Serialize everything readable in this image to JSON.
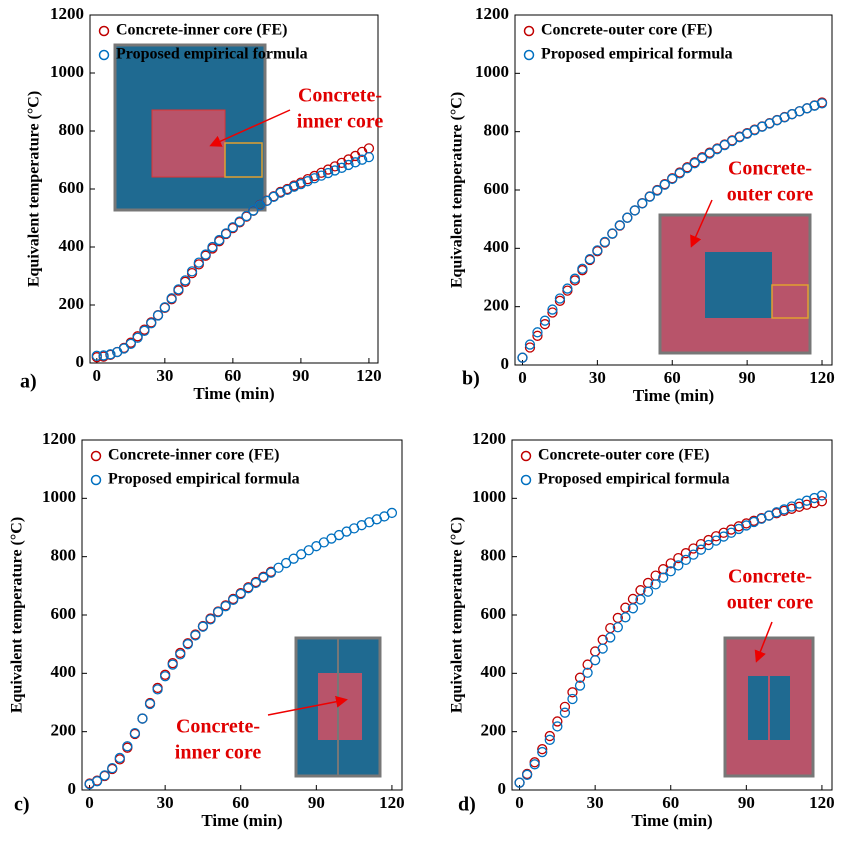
{
  "chart_data": [
    {
      "type": "scatter",
      "panel_label": "a)",
      "xlabel": "Time (min)",
      "ylabel": "Equivalent temperature (°C)",
      "annotation": [
        "Concrete-",
        "inner core"
      ],
      "xlim": [
        -3,
        124
      ],
      "xticks": [
        0,
        30,
        60,
        90,
        120
      ],
      "ylim": [
        0,
        1200
      ],
      "yticks": [
        0,
        200,
        400,
        600,
        800,
        1000,
        1200
      ],
      "x": [
        0,
        3,
        6,
        9,
        12,
        15,
        18,
        21,
        24,
        27,
        30,
        33,
        36,
        39,
        42,
        45,
        48,
        51,
        54,
        57,
        60,
        63,
        66,
        69,
        72,
        75,
        78,
        81,
        84,
        87,
        90,
        93,
        96,
        99,
        102,
        105,
        108,
        111,
        114,
        117,
        120
      ],
      "series": [
        {
          "name": "Concrete-inner core (FE)",
          "color": "#c00000",
          "values": [
            20,
            22,
            28,
            38,
            52,
            70,
            92,
            115,
            140,
            165,
            190,
            220,
            250,
            280,
            310,
            340,
            370,
            395,
            420,
            445,
            465,
            485,
            505,
            525,
            545,
            560,
            575,
            590,
            600,
            612,
            622,
            634,
            645,
            656,
            667,
            678,
            690,
            702,
            714,
            728,
            740
          ]
        },
        {
          "name": "Proposed empirical formula",
          "color": "#0070c0",
          "values": [
            25,
            26,
            30,
            38,
            50,
            66,
            87,
            111,
            137,
            164,
            192,
            223,
            254,
            285,
            316,
            346,
            374,
            400,
            424,
            447,
            468,
            488,
            507,
            526,
            544,
            559,
            573,
            587,
            597,
            608,
            617,
            627,
            637,
            646,
            655,
            664,
            673,
            683,
            692,
            701,
            710
          ]
        }
      ]
    },
    {
      "type": "scatter",
      "panel_label": "b)",
      "xlabel": "Time (min)",
      "ylabel": "Equivalent temperature (°C)",
      "annotation": [
        "Concrete-",
        "outer core"
      ],
      "xlim": [
        -3,
        124
      ],
      "xticks": [
        0,
        30,
        60,
        90,
        120
      ],
      "ylim": [
        0,
        1200
      ],
      "yticks": [
        0,
        200,
        400,
        600,
        800,
        1000,
        1200
      ],
      "x": [
        0,
        3,
        6,
        9,
        12,
        15,
        18,
        21,
        24,
        27,
        30,
        33,
        36,
        39,
        42,
        45,
        48,
        51,
        54,
        57,
        60,
        63,
        66,
        69,
        72,
        75,
        78,
        81,
        84,
        87,
        90,
        93,
        96,
        99,
        102,
        105,
        108,
        111,
        114,
        117,
        120
      ],
      "series": [
        {
          "name": "Concrete-outer core (FE)",
          "color": "#c00000",
          "values": [
            25,
            60,
            100,
            140,
            180,
            220,
            255,
            290,
            325,
            360,
            390,
            420,
            450,
            478,
            505,
            530,
            555,
            578,
            600,
            620,
            640,
            660,
            678,
            695,
            712,
            728,
            742,
            756,
            770,
            783,
            795,
            807,
            818,
            829,
            840,
            850,
            860,
            870,
            880,
            890,
            900
          ]
        },
        {
          "name": "Proposed empirical formula",
          "color": "#0070c0",
          "values": [
            25,
            70,
            112,
            152,
            190,
            228,
            262,
            296,
            330,
            363,
            393,
            422,
            451,
            479,
            505,
            530,
            554,
            577,
            598,
            618,
            638,
            657,
            675,
            692,
            709,
            725,
            740,
            754,
            768,
            781,
            793,
            805,
            817,
            828,
            839,
            849,
            860,
            870,
            880,
            889,
            897
          ]
        }
      ]
    },
    {
      "type": "scatter",
      "panel_label": "c)",
      "xlabel": "Time (min)",
      "ylabel": "Equivalent temperature (°C)",
      "annotation": [
        "Concrete-",
        "inner core"
      ],
      "xlim": [
        -3,
        124
      ],
      "xticks": [
        0,
        30,
        60,
        90,
        120
      ],
      "ylim": [
        0,
        1200
      ],
      "yticks": [
        0,
        200,
        400,
        600,
        800,
        1000,
        1200
      ],
      "x": [
        0,
        3,
        6,
        9,
        12,
        15,
        18,
        21,
        24,
        27,
        30,
        33,
        36,
        39,
        42,
        45,
        48,
        51,
        54,
        57,
        60,
        63,
        66,
        69,
        72,
        75,
        78,
        81,
        84,
        87,
        90,
        93,
        96,
        99,
        102,
        105,
        108,
        111,
        114,
        117,
        120
      ],
      "series": [
        {
          "name": "Concrete-inner core (FE)",
          "color": "#c00000",
          "values": [
            22,
            32,
            48,
            72,
            105,
            145,
            192,
            245,
            298,
            350,
            395,
            435,
            470,
            503,
            533,
            562,
            588,
            612,
            633,
            655,
            675,
            695,
            713,
            731,
            748,
            null,
            null,
            null,
            null,
            null,
            null,
            null,
            null,
            null,
            null,
            null,
            null,
            null,
            null,
            null,
            null
          ]
        },
        {
          "name": "Proposed empirical formula",
          "color": "#0070c0",
          "values": [
            20,
            30,
            50,
            75,
            110,
            150,
            195,
            245,
            295,
            345,
            390,
            430,
            465,
            500,
            530,
            560,
            585,
            610,
            630,
            652,
            672,
            692,
            710,
            728,
            745,
            762,
            778,
            793,
            808,
            822,
            836,
            849,
            862,
            874,
            886,
            897,
            908,
            918,
            928,
            938,
            950
          ]
        }
      ]
    },
    {
      "type": "scatter",
      "panel_label": "d)",
      "xlabel": "Time (min)",
      "ylabel": "Equivalent temperature (°C)",
      "annotation": [
        "Concrete-",
        "outer core"
      ],
      "xlim": [
        -3,
        124
      ],
      "xticks": [
        0,
        30,
        60,
        90,
        120
      ],
      "ylim": [
        0,
        1200
      ],
      "yticks": [
        0,
        200,
        400,
        600,
        800,
        1000,
        1200
      ],
      "x": [
        0,
        3,
        6,
        9,
        12,
        15,
        18,
        21,
        24,
        27,
        30,
        33,
        36,
        39,
        42,
        45,
        48,
        51,
        54,
        57,
        60,
        63,
        66,
        69,
        72,
        75,
        78,
        81,
        84,
        87,
        90,
        93,
        96,
        99,
        102,
        105,
        108,
        111,
        114,
        117,
        120
      ],
      "series": [
        {
          "name": "Concrete-outer core (FE)",
          "color": "#c00000",
          "values": [
            25,
            55,
            95,
            140,
            185,
            235,
            285,
            335,
            385,
            430,
            475,
            515,
            555,
            590,
            625,
            655,
            685,
            710,
            735,
            757,
            777,
            795,
            812,
            828,
            843,
            857,
            870,
            882,
            893,
            904,
            914,
            923,
            932,
            941,
            949,
            957,
            964,
            971,
            978,
            984,
            990
          ]
        },
        {
          "name": "Proposed empirical formula",
          "color": "#0070c0",
          "values": [
            25,
            52,
            88,
            130,
            172,
            218,
            265,
            312,
            358,
            402,
            445,
            485,
            523,
            558,
            592,
            623,
            653,
            680,
            705,
            728,
            750,
            770,
            789,
            807,
            824,
            840,
            855,
            869,
            882,
            895,
            907,
            919,
            930,
            941,
            952,
            962,
            972,
            982,
            992,
            1001,
            1010
          ]
        }
      ]
    }
  ]
}
